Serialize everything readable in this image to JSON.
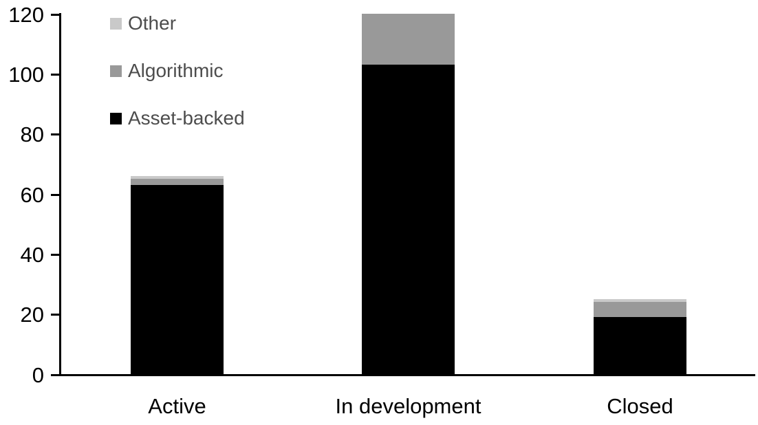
{
  "chart_data": {
    "type": "bar",
    "stacked": true,
    "title": "",
    "xlabel": "",
    "ylabel": "",
    "categories": [
      "Active",
      "In development",
      "Closed"
    ],
    "series": [
      {
        "name": "Asset-backed",
        "color": "#000000",
        "values": [
          63,
          103,
          19
        ]
      },
      {
        "name": "Algorithmic",
        "color": "#999999",
        "values": [
          2,
          17,
          5
        ]
      },
      {
        "name": "Other",
        "color": "#c9c9c9",
        "values": [
          1,
          0,
          1
        ]
      }
    ],
    "ylim": [
      0,
      120
    ],
    "ytick_step": 20,
    "ytick_labels": [
      "0",
      "20",
      "40",
      "60",
      "80",
      "100",
      "120"
    ],
    "grid": false,
    "legend_position": "top-left",
    "legend_order_top_to_bottom": [
      "Other",
      "Algorithmic",
      "Asset-backed"
    ],
    "axis_color": "#000000",
    "tick_label_color": "#000000",
    "legend_text_color": "#4d4d4d",
    "background": "#ffffff"
  }
}
